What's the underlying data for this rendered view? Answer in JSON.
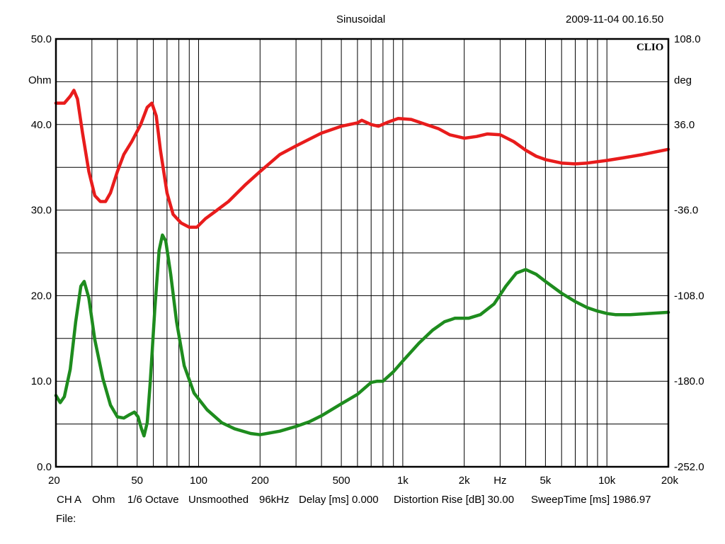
{
  "header": {
    "title": "Sinusoidal",
    "timestamp": "2009-11-04 00.16.50"
  },
  "brand": "CLIO",
  "chart_data": {
    "type": "line",
    "x_scale": "log",
    "xlim": [
      20,
      20000
    ],
    "x_tick_values": [
      20,
      50,
      100,
      200,
      500,
      1000,
      2000,
      5000,
      10000,
      20000
    ],
    "x_tick_labels": [
      "20",
      "50",
      "100",
      "200",
      "500",
      "1k",
      "2k",
      "5k",
      "10k",
      "20k"
    ],
    "xlabel": "Hz",
    "xlabel_value": 3000,
    "left_axis": {
      "unit": "Ohm",
      "ylim": [
        0,
        50
      ],
      "ticks": [
        0,
        10,
        20,
        30,
        40,
        50
      ],
      "tick_labels": [
        "0.0",
        "10.0",
        "20.0",
        "30.0",
        "40.0",
        "50.0"
      ]
    },
    "right_axis": {
      "unit": "deg",
      "ylim": [
        -252,
        108
      ],
      "ticks": [
        -252,
        -180,
        -108,
        -36,
        36,
        108
      ],
      "tick_labels": [
        "-252.0",
        "-180.0",
        "-108.0",
        "-36.0",
        "36.0",
        "108.0"
      ]
    },
    "grid": true,
    "series": [
      {
        "axis": "left",
        "color": "#e81c1c",
        "points": [
          [
            20,
            42.5
          ],
          [
            22,
            42.5
          ],
          [
            23.5,
            43.3
          ],
          [
            24.5,
            44.0
          ],
          [
            25.5,
            43.0
          ],
          [
            27,
            39.0
          ],
          [
            29,
            34.5
          ],
          [
            31,
            31.7
          ],
          [
            33,
            31.0
          ],
          [
            35,
            31.0
          ],
          [
            37,
            32.0
          ],
          [
            40,
            34.5
          ],
          [
            43,
            36.5
          ],
          [
            47,
            38.0
          ],
          [
            52,
            40.0
          ],
          [
            56,
            42.0
          ],
          [
            59,
            42.5
          ],
          [
            62,
            41.0
          ],
          [
            65,
            37.0
          ],
          [
            70,
            32.0
          ],
          [
            75,
            29.5
          ],
          [
            82,
            28.5
          ],
          [
            90,
            28.0
          ],
          [
            98,
            28.0
          ],
          [
            108,
            29.0
          ],
          [
            120,
            29.8
          ],
          [
            140,
            31.0
          ],
          [
            170,
            33.0
          ],
          [
            200,
            34.5
          ],
          [
            250,
            36.5
          ],
          [
            300,
            37.5
          ],
          [
            350,
            38.3
          ],
          [
            400,
            39.0
          ],
          [
            500,
            39.8
          ],
          [
            600,
            40.2
          ],
          [
            630,
            40.5
          ],
          [
            700,
            40.0
          ],
          [
            760,
            39.8
          ],
          [
            850,
            40.3
          ],
          [
            950,
            40.7
          ],
          [
            1100,
            40.6
          ],
          [
            1300,
            40.0
          ],
          [
            1500,
            39.5
          ],
          [
            1700,
            38.8
          ],
          [
            2000,
            38.4
          ],
          [
            2300,
            38.6
          ],
          [
            2600,
            38.9
          ],
          [
            3000,
            38.8
          ],
          [
            3500,
            38.0
          ],
          [
            4000,
            37.0
          ],
          [
            4500,
            36.3
          ],
          [
            5000,
            35.9
          ],
          [
            6000,
            35.5
          ],
          [
            7000,
            35.4
          ],
          [
            8000,
            35.5
          ],
          [
            10000,
            35.8
          ],
          [
            12000,
            36.1
          ],
          [
            15000,
            36.5
          ],
          [
            20000,
            37.1
          ]
        ]
      },
      {
        "axis": "right",
        "color": "#1e8c1e",
        "points": [
          [
            20,
            -192
          ],
          [
            21,
            -198
          ],
          [
            22,
            -193
          ],
          [
            23.5,
            -170
          ],
          [
            25,
            -130
          ],
          [
            26.5,
            -100
          ],
          [
            27.5,
            -96
          ],
          [
            29,
            -110
          ],
          [
            31,
            -145
          ],
          [
            34,
            -178
          ],
          [
            37,
            -200
          ],
          [
            40,
            -210
          ],
          [
            43,
            -211
          ],
          [
            46,
            -208
          ],
          [
            48.5,
            -206
          ],
          [
            50.5,
            -210
          ],
          [
            52.5,
            -220
          ],
          [
            54,
            -226
          ],
          [
            56,
            -215
          ],
          [
            58,
            -180
          ],
          [
            61,
            -120
          ],
          [
            64,
            -70
          ],
          [
            66.5,
            -57
          ],
          [
            69,
            -62
          ],
          [
            73,
            -90
          ],
          [
            78,
            -130
          ],
          [
            85,
            -167
          ],
          [
            95,
            -190
          ],
          [
            110,
            -204
          ],
          [
            130,
            -215
          ],
          [
            150,
            -220
          ],
          [
            180,
            -224
          ],
          [
            200,
            -225
          ],
          [
            250,
            -222
          ],
          [
            300,
            -218
          ],
          [
            350,
            -214
          ],
          [
            400,
            -209
          ],
          [
            500,
            -199
          ],
          [
            600,
            -191
          ],
          [
            700,
            -181
          ],
          [
            750,
            -180
          ],
          [
            800,
            -180
          ],
          [
            900,
            -172
          ],
          [
            1000,
            -163
          ],
          [
            1200,
            -148
          ],
          [
            1400,
            -137
          ],
          [
            1600,
            -130
          ],
          [
            1800,
            -127
          ],
          [
            2100,
            -127
          ],
          [
            2400,
            -124
          ],
          [
            2800,
            -115
          ],
          [
            3200,
            -100
          ],
          [
            3600,
            -89
          ],
          [
            4000,
            -86
          ],
          [
            4500,
            -90
          ],
          [
            5000,
            -96
          ],
          [
            6000,
            -106
          ],
          [
            7000,
            -113
          ],
          [
            8000,
            -118
          ],
          [
            9000,
            -121
          ],
          [
            10000,
            -123
          ],
          [
            11000,
            -124
          ],
          [
            13000,
            -124
          ],
          [
            16000,
            -123
          ],
          [
            20000,
            -122
          ]
        ]
      }
    ]
  },
  "footer": {
    "channel": "CH A",
    "unit": "Ohm",
    "resolution": "1/6 Octave",
    "smoothing": "Unsmoothed",
    "sample_rate": "96kHz",
    "delay": "Delay [ms] 0.000",
    "distortion": "Distortion Rise [dB] 30.00",
    "sweep": "SweepTime [ms] 1986.97",
    "file_label": "File:"
  }
}
